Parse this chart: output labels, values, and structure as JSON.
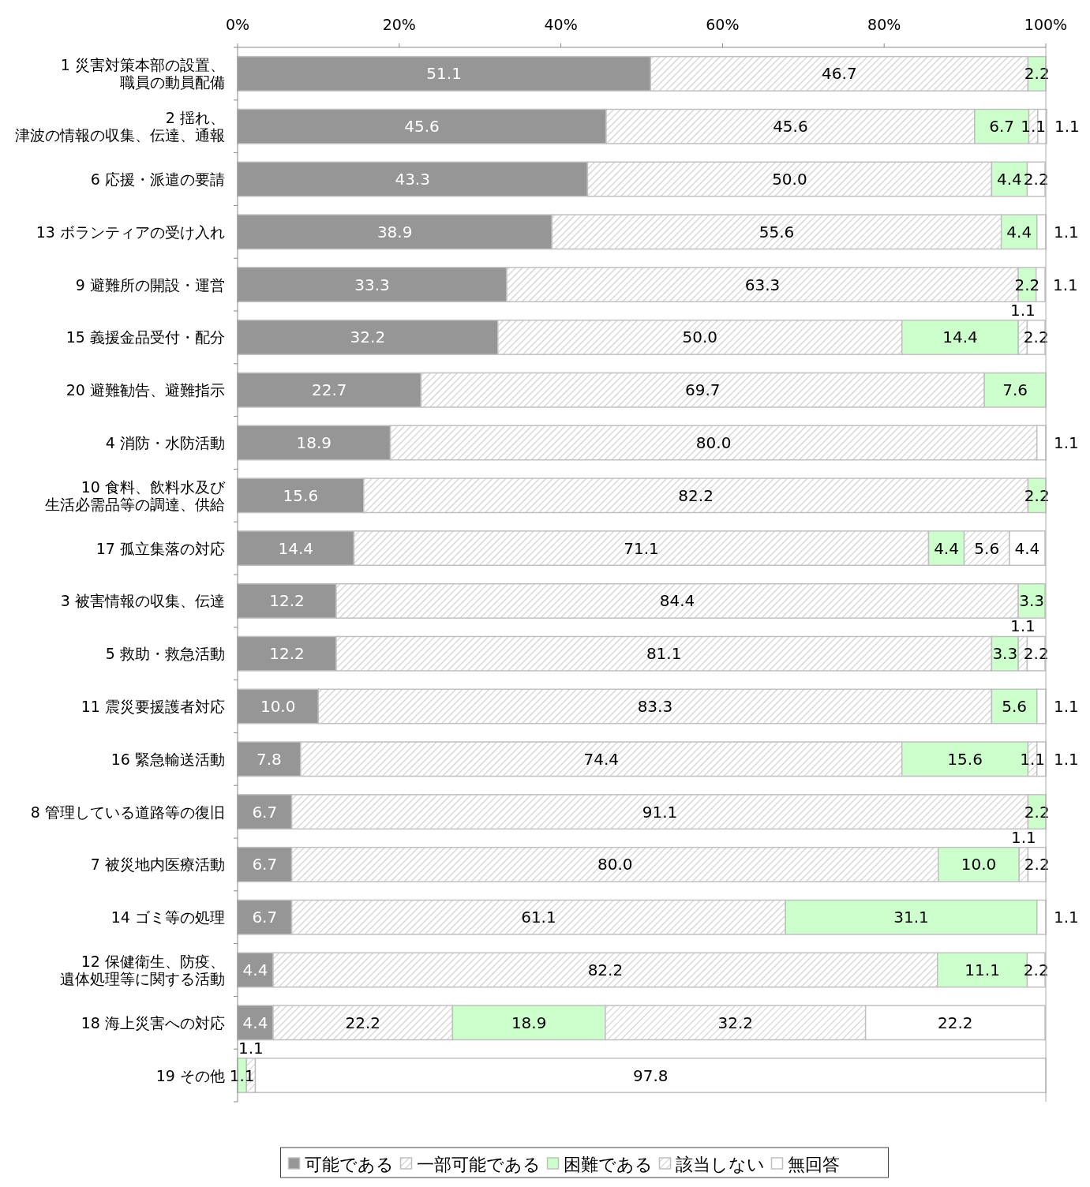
{
  "chart_data": {
    "type": "bar",
    "orientation": "horizontal",
    "stacked": true,
    "legend": "bottom",
    "grid": false,
    "categories": [
      "1 災害対策本部の設置、職員の動員配備",
      "2 揺れ、津波の情報の収集、伝達、通報",
      "6 応援・派遣の要請",
      "13 ボランティアの受け入れ",
      "9 避難所の開設・運営",
      "15 義援金品受付・配分",
      "20 避難勧告、避難指示",
      "4 消防・水防活動",
      "10 食料、飲料水及び生活必需品等の調達、供給",
      "17 孤立集落の対応",
      "3 被害情報の収集、伝達",
      "5 救助・救急活動",
      "11 震災要援護者対応",
      "16 緊急輸送活動",
      "8 管理している道路等の復旧",
      "7 被災地内医療活動",
      "14 ゴミ等の処理",
      "12 保健衛生、防疫、遺体処理等に関する活動",
      "18 海上災害への対応",
      "19 その他"
    ],
    "xlim": [
      0,
      100
    ],
    "xticks": [
      {
        "value": 0,
        "label": "0%"
      },
      {
        "value": 20,
        "label": "20%"
      },
      {
        "value": 40,
        "label": "40%"
      },
      {
        "value": 60,
        "label": "60%"
      },
      {
        "value": 80,
        "label": "80%"
      },
      {
        "value": 100,
        "label": "100%"
      }
    ],
    "series": [
      {
        "name": "可能である",
        "color": "#969696",
        "values": [
          51.1,
          45.6,
          43.3,
          38.9,
          33.3,
          32.2,
          22.7,
          18.9,
          15.6,
          14.4,
          12.2,
          12.2,
          10.0,
          7.8,
          6.7,
          6.7,
          6.7,
          4.4,
          4.4,
          null
        ],
        "value_labels": [
          "51.1",
          "45.6",
          "43.3",
          "38.9",
          "33.3",
          "32.2",
          "22.7",
          "18.9",
          "15.6",
          "14.4",
          "12.2",
          "12.2",
          "10.0",
          "7.8",
          "6.7",
          "6.7",
          "6.7",
          "4.4",
          "4.4",
          null
        ]
      },
      {
        "name": "一部可能である",
        "color": "#d0d0d0",
        "values": [
          46.7,
          45.6,
          50.0,
          55.6,
          63.3,
          50.0,
          69.7,
          80.0,
          82.2,
          71.1,
          84.4,
          81.1,
          83.3,
          74.4,
          91.1,
          80.0,
          61.1,
          82.2,
          22.2,
          null
        ],
        "value_labels": [
          "46.7",
          "45.6",
          "50.0",
          "55.6",
          "63.3",
          "50.0",
          "69.7",
          "80.0",
          "82.2",
          "71.1",
          "84.4",
          "81.1",
          "83.3",
          "74.4",
          "91.1",
          "80.0",
          "61.1",
          "82.2",
          "22.2",
          null
        ]
      },
      {
        "name": "困難である",
        "color": "#ccffcc",
        "values": [
          2.2,
          6.7,
          4.4,
          4.4,
          2.2,
          14.4,
          7.6,
          null,
          2.2,
          4.4,
          3.3,
          3.3,
          5.6,
          15.6,
          2.2,
          10.0,
          31.1,
          11.1,
          18.9,
          1.1
        ],
        "value_labels": [
          "2.2",
          "6.7",
          "4.4",
          "4.4",
          "2.2",
          "14.4",
          "7.6",
          null,
          "2.2",
          "4.4",
          "3.3",
          "3.3",
          "5.6",
          "15.6",
          "2.2",
          "10.0",
          "31.1",
          "11.1",
          "18.9",
          "1.1"
        ]
      },
      {
        "name": "該当しない",
        "color": "#c0c0c0",
        "values": [
          null,
          1.1,
          null,
          null,
          null,
          1.1,
          null,
          null,
          null,
          5.6,
          null,
          1.1,
          null,
          1.1,
          null,
          1.1,
          null,
          null,
          32.2,
          1.1
        ],
        "value_labels": [
          null,
          "1.1",
          null,
          null,
          null,
          "1.1",
          null,
          null,
          null,
          "5.6",
          null,
          "1.1",
          null,
          "1.1",
          null,
          "1.1",
          null,
          null,
          "32.2",
          "1.1"
        ]
      },
      {
        "name": "無回答",
        "color": "#ffffff",
        "values": [
          null,
          1.1,
          2.2,
          1.1,
          1.1,
          2.2,
          null,
          1.1,
          null,
          4.4,
          null,
          2.2,
          1.1,
          1.1,
          null,
          2.2,
          1.1,
          2.2,
          22.2,
          97.8
        ],
        "value_labels": [
          null,
          "1.1",
          "2.2",
          "1.1",
          "1.1",
          "2.2",
          null,
          "1.1",
          null,
          "4.4",
          null,
          "2.2",
          "1.1",
          "1.1",
          null,
          "2.2",
          "1.1",
          "2.2",
          "22.2",
          "97.8"
        ]
      }
    ]
  }
}
